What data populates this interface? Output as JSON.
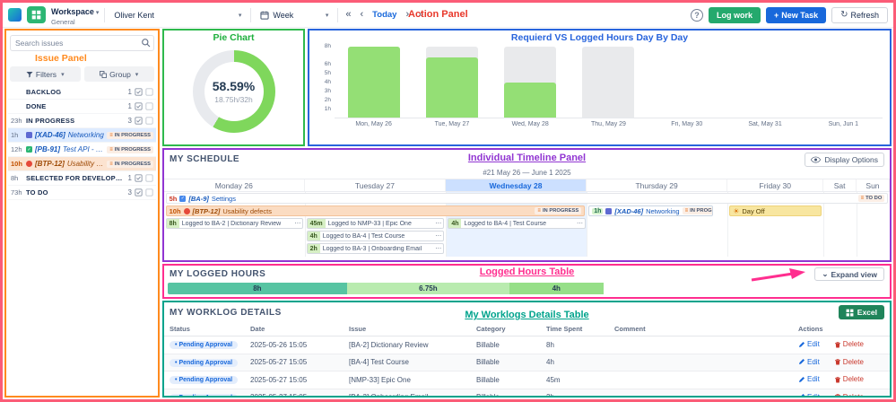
{
  "icons": {
    "chevron_down": "▾",
    "caret_down": "⌄",
    "double_chevron_left": "«",
    "chevron_left": "‹",
    "chevron_right": "›",
    "double_chevron_right": "»",
    "refresh": "↻",
    "help": "?",
    "plus": "+",
    "sun": "☀",
    "menu": "≡",
    "dots": "⋯",
    "bullet": "•"
  },
  "annotations": {
    "action_panel": "Action Panel",
    "issue_panel": "Issue Panel",
    "pie_chart": "Pie Chart",
    "bar_chart": "Requierd VS Logged Hours Day By Day",
    "timeline": "Individual Timeline Panel",
    "logged_hours": "Logged Hours Table",
    "worklogs": "My Worklogs Details Table"
  },
  "topbar": {
    "workspace_label": "Workspace",
    "workspace_sublabel": "General",
    "user_select_value": "Oliver Kent",
    "period_select_value": "Week",
    "today_button": "Today",
    "log_work_button": "Log work",
    "new_task_button": "New Task",
    "refresh_button": "Refresh"
  },
  "issue_panel": {
    "search_placeholder": "Search issues",
    "filters_button": "Filters",
    "group_button": "Group",
    "groups": {
      "backlog": {
        "label": "BACKLOG",
        "count": "1"
      },
      "done": {
        "label": "DONE",
        "count": "1"
      },
      "in_progress": {
        "hours": "23h",
        "label": "IN PROGRESS",
        "count": "3"
      },
      "selected": {
        "hours": "8h",
        "label": "SELECTED FOR DEVELOPMENT",
        "count": "1"
      },
      "todo": {
        "hours": "73h",
        "label": "TO DO",
        "count": "3"
      }
    },
    "issues": [
      {
        "hours": "1h",
        "key": "[XAD-46]",
        "summary": "Networking",
        "status": "IN PROGRESS"
      },
      {
        "hours": "12h",
        "key": "[PB-91]",
        "summary": "Test API - 548",
        "status": "IN PROGRESS"
      },
      {
        "hours": "10h",
        "key": "[BTP-12]",
        "summary": "Usability defects",
        "status": "IN PROGRESS"
      }
    ]
  },
  "chart_data": [
    {
      "type": "donut",
      "title": "Pie Chart",
      "label": "58.59%",
      "sublabel": "18.75h/32h",
      "percent": 58.59,
      "color": "#7FD75C",
      "track_color": "#E8EAEE"
    },
    {
      "type": "bar",
      "title": "Requierd VS Logged Hours Day By Day",
      "categories": [
        "Mon, May 26",
        "Tue, May 27",
        "Wed, May 28",
        "Thu, May 29",
        "Fri, May 30",
        "Sat, May 31",
        "Sun, Jun 1"
      ],
      "series": [
        {
          "name": "Required",
          "color": "#E9EAEC",
          "values": [
            8,
            8,
            8,
            8,
            0,
            0,
            0
          ]
        },
        {
          "name": "Logged",
          "color": "#94DF75",
          "values": [
            8,
            6.75,
            4,
            0,
            0,
            0,
            0
          ]
        }
      ],
      "ylim": [
        0,
        8
      ],
      "yticks": [
        "8h",
        "6h",
        "5h",
        "4h",
        "3h",
        "2h",
        "1h"
      ]
    }
  ],
  "schedule": {
    "title": "MY SCHEDULE",
    "display_options_button": "Display Options",
    "week_label": "#21 May 26 — June 1 2025",
    "day_headers": [
      "Monday 26",
      "Tuesday 27",
      "Wednesday 28",
      "Thursday 29",
      "Friday 30",
      "Sat",
      "Sun"
    ],
    "issue_bars": [
      {
        "hours": "5h",
        "key": "[BA-9]",
        "summary": "Settings",
        "status": "TO DO"
      },
      {
        "hours": "10h",
        "key": "[BTP-12]",
        "summary": "Usability defects",
        "status": "IN PROGRESS"
      },
      {
        "hours": "1h",
        "key": "[XAD-46]",
        "summary": "Networking",
        "status": "IN PROGRESS"
      }
    ],
    "day_off_label": "Day Off",
    "worklog_chips": [
      {
        "time": "8h",
        "text": "Logged to BA-2 | Dictionary Review"
      },
      {
        "time": "45m",
        "text": "Logged to NMP-33 | Epic One"
      },
      {
        "time": "4h",
        "text": "Logged to BA-4 | Test Course"
      },
      {
        "time": "4h",
        "text": "Logged to BA-4 | Test Course"
      },
      {
        "time": "2h",
        "text": "Logged to BA-3 | Onboarding Email"
      }
    ]
  },
  "logged_hours": {
    "title": "MY LOGGED HOURS",
    "expand_button": "Expand view",
    "total": 32,
    "segments": [
      {
        "label": "8h",
        "value": 8,
        "color": "#57C4A2"
      },
      {
        "label": "6.75h",
        "value": 6.75,
        "color": "#B9EBAF"
      },
      {
        "label": "4h",
        "value": 4,
        "color": "#96DF88"
      }
    ]
  },
  "worklog_details": {
    "title": "MY WORKLOG DETAILS",
    "excel_button": "Excel",
    "columns": [
      "Status",
      "Date",
      "Issue",
      "Category",
      "Time Spent",
      "Comment",
      "Actions"
    ],
    "rows": [
      {
        "status": "Pending Approval",
        "date": "2025-05-26 15:05",
        "issue": "[BA-2] Dictionary Review",
        "category": "Billable",
        "time_spent": "8h",
        "comment": "",
        "edit": "Edit",
        "delete": "Delete"
      },
      {
        "status": "Pending Approval",
        "date": "2025-05-27 15:05",
        "issue": "[BA-4] Test Course",
        "category": "Billable",
        "time_spent": "4h",
        "comment": "",
        "edit": "Edit",
        "delete": "Delete"
      },
      {
        "status": "Pending Approval",
        "date": "2025-05-27 15:05",
        "issue": "[NMP-33] Epic One",
        "category": "Billable",
        "time_spent": "45m",
        "comment": "",
        "edit": "Edit",
        "delete": "Delete"
      },
      {
        "status": "Pending Approval",
        "date": "2025-05-27 15:05",
        "issue": "[BA-3] Onboarding Email",
        "category": "Billable",
        "time_spent": "2h",
        "comment": "",
        "edit": "Edit",
        "delete": "Delete"
      }
    ]
  }
}
